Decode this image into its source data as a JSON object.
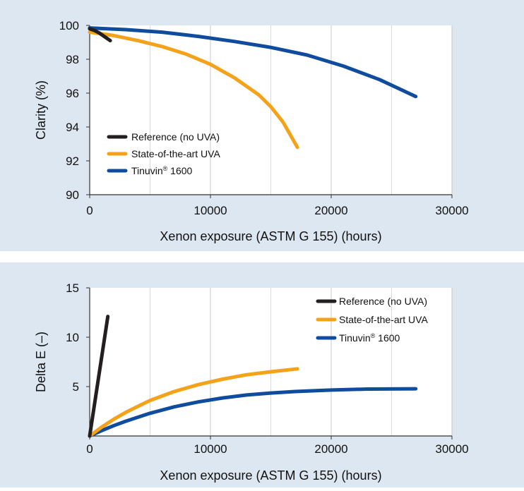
{
  "chart_data": [
    {
      "type": "line",
      "title": "",
      "xlabel": "Xenon exposure (ASTM G 155) (hours)",
      "ylabel": "Clarity (%)",
      "xlim": [
        0,
        30000
      ],
      "ylim": [
        90,
        100
      ],
      "xticks": [
        0,
        10000,
        20000,
        30000
      ],
      "yticks": [
        90,
        92,
        94,
        96,
        98,
        100
      ],
      "grid": "vertical",
      "legend_position": "bottom-left",
      "series": [
        {
          "name": "Reference (no UVA)",
          "color": "#231f20",
          "x": [
            0,
            400,
            800,
            1200,
            1700
          ],
          "y": [
            99.8,
            99.7,
            99.55,
            99.35,
            99.1
          ]
        },
        {
          "name": "State-of-the-art UVA",
          "color": "#f5a21b",
          "x": [
            0,
            2000,
            4000,
            6000,
            8000,
            10000,
            12000,
            14000,
            15000,
            16000,
            17200
          ],
          "y": [
            99.6,
            99.4,
            99.1,
            98.75,
            98.3,
            97.7,
            96.9,
            95.9,
            95.2,
            94.3,
            92.8
          ]
        },
        {
          "name": "Tinuvin® 1600",
          "color": "#0f4c9e",
          "x": [
            0,
            3000,
            6000,
            9000,
            12000,
            15000,
            18000,
            21000,
            24000,
            27000
          ],
          "y": [
            99.85,
            99.75,
            99.6,
            99.35,
            99.05,
            98.7,
            98.25,
            97.6,
            96.8,
            95.8
          ]
        }
      ]
    },
    {
      "type": "line",
      "title": "",
      "xlabel": "Xenon exposure (ASTM G 155) (hours)",
      "ylabel": "Delta E (–)",
      "xlim": [
        0,
        30000
      ],
      "ylim": [
        0,
        15
      ],
      "xticks": [
        0,
        10000,
        20000,
        30000
      ],
      "yticks": [
        5,
        10,
        15
      ],
      "grid": "vertical",
      "legend_position": "top-right",
      "series": [
        {
          "name": "Reference (no UVA)",
          "color": "#231f20",
          "x": [
            0,
            1500
          ],
          "y": [
            0,
            12.1
          ]
        },
        {
          "name": "State-of-the-art UVA",
          "color": "#f5a21b",
          "x": [
            0,
            1000,
            2000,
            3000,
            4000,
            5000,
            7000,
            9000,
            11000,
            13000,
            15000,
            17200
          ],
          "y": [
            0,
            0.9,
            1.7,
            2.4,
            3.0,
            3.6,
            4.5,
            5.2,
            5.75,
            6.2,
            6.5,
            6.8
          ]
        },
        {
          "name": "Tinuvin® 1600",
          "color": "#0f4c9e",
          "x": [
            0,
            1000,
            2000,
            3000,
            5000,
            7000,
            9000,
            11000,
            13000,
            15000,
            17000,
            20000,
            23000,
            27000
          ],
          "y": [
            0,
            0.55,
            1.05,
            1.5,
            2.3,
            2.95,
            3.45,
            3.85,
            4.15,
            4.35,
            4.5,
            4.65,
            4.75,
            4.78
          ]
        }
      ]
    }
  ]
}
